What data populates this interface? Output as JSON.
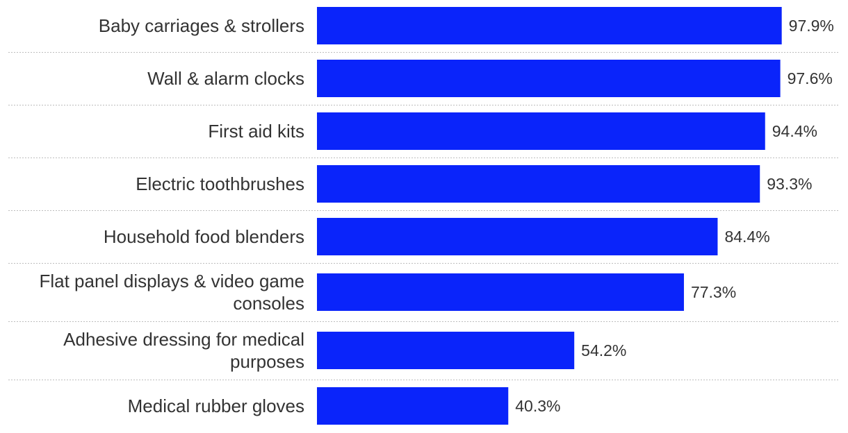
{
  "chart_data": {
    "type": "bar",
    "orientation": "horizontal",
    "title": "",
    "xlabel": "",
    "ylabel": "",
    "xlim": [
      0,
      100
    ],
    "grid": false,
    "categories": [
      {
        "label": "Baby carriages & strollers",
        "lines": [
          "Baby carriages & strollers"
        ]
      },
      {
        "label": "Wall & alarm clocks",
        "lines": [
          "Wall & alarm clocks"
        ]
      },
      {
        "label": "First aid kits",
        "lines": [
          "First aid kits"
        ]
      },
      {
        "label": "Electric toothbrushes",
        "lines": [
          "Electric toothbrushes"
        ]
      },
      {
        "label": "Household food blenders",
        "lines": [
          "Household food blenders"
        ]
      },
      {
        "label": "Flat panel displays & video game consoles",
        "lines": [
          "Flat panel displays & video game",
          "consoles"
        ]
      },
      {
        "label": "Adhesive dressing for medical purposes",
        "lines": [
          "Adhesive dressing for medical",
          "purposes"
        ]
      },
      {
        "label": "Medical rubber gloves",
        "lines": [
          "Medical rubber gloves"
        ]
      }
    ],
    "values": [
      97.9,
      97.6,
      94.4,
      93.3,
      84.4,
      77.3,
      54.2,
      40.3
    ],
    "value_labels": [
      "97.9%",
      "97.6%",
      "94.4%",
      "93.3%",
      "84.4%",
      "77.3%",
      "54.2%",
      "40.3%"
    ],
    "bar_color": "#0a24fa",
    "text_color": "#333333"
  }
}
